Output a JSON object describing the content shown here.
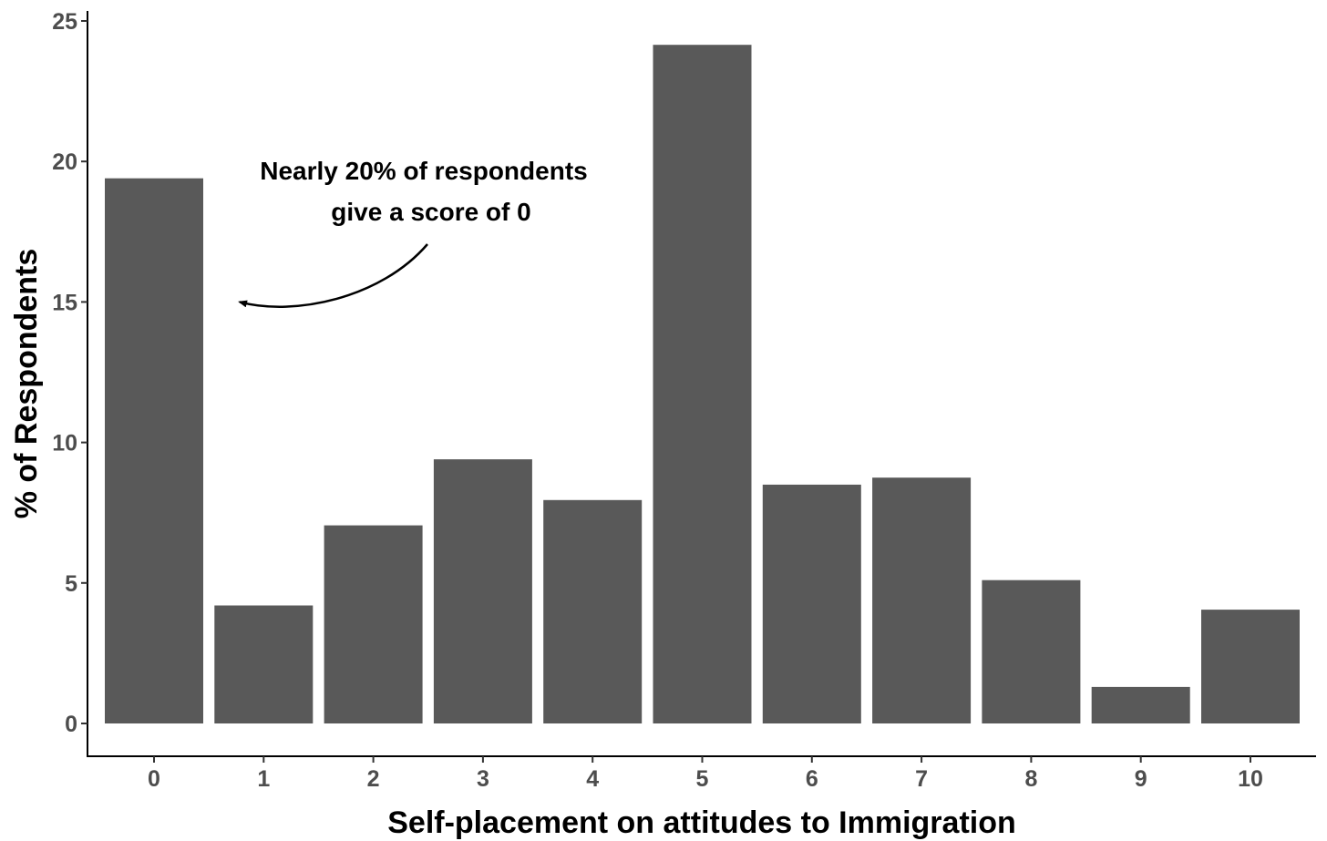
{
  "chart_data": {
    "type": "bar",
    "title": "",
    "xlabel": "Self-placement on attitudes to Immigration",
    "ylabel": "% of Respondents",
    "categories": [
      "0",
      "1",
      "2",
      "3",
      "4",
      "5",
      "6",
      "7",
      "8",
      "9",
      "10"
    ],
    "values": [
      19.4,
      4.2,
      7.05,
      9.4,
      7.95,
      24.15,
      8.5,
      8.75,
      5.1,
      1.3,
      4.05
    ],
    "ylim": [
      0,
      25
    ],
    "yticks": [
      "0",
      "5",
      "10",
      "15",
      "20",
      "25"
    ],
    "grid": false,
    "bar_color": "#595959",
    "annotation": {
      "lines": [
        "Nearly 20% of respondents",
        "give a score of 0"
      ],
      "points_to_value": 15
    }
  }
}
